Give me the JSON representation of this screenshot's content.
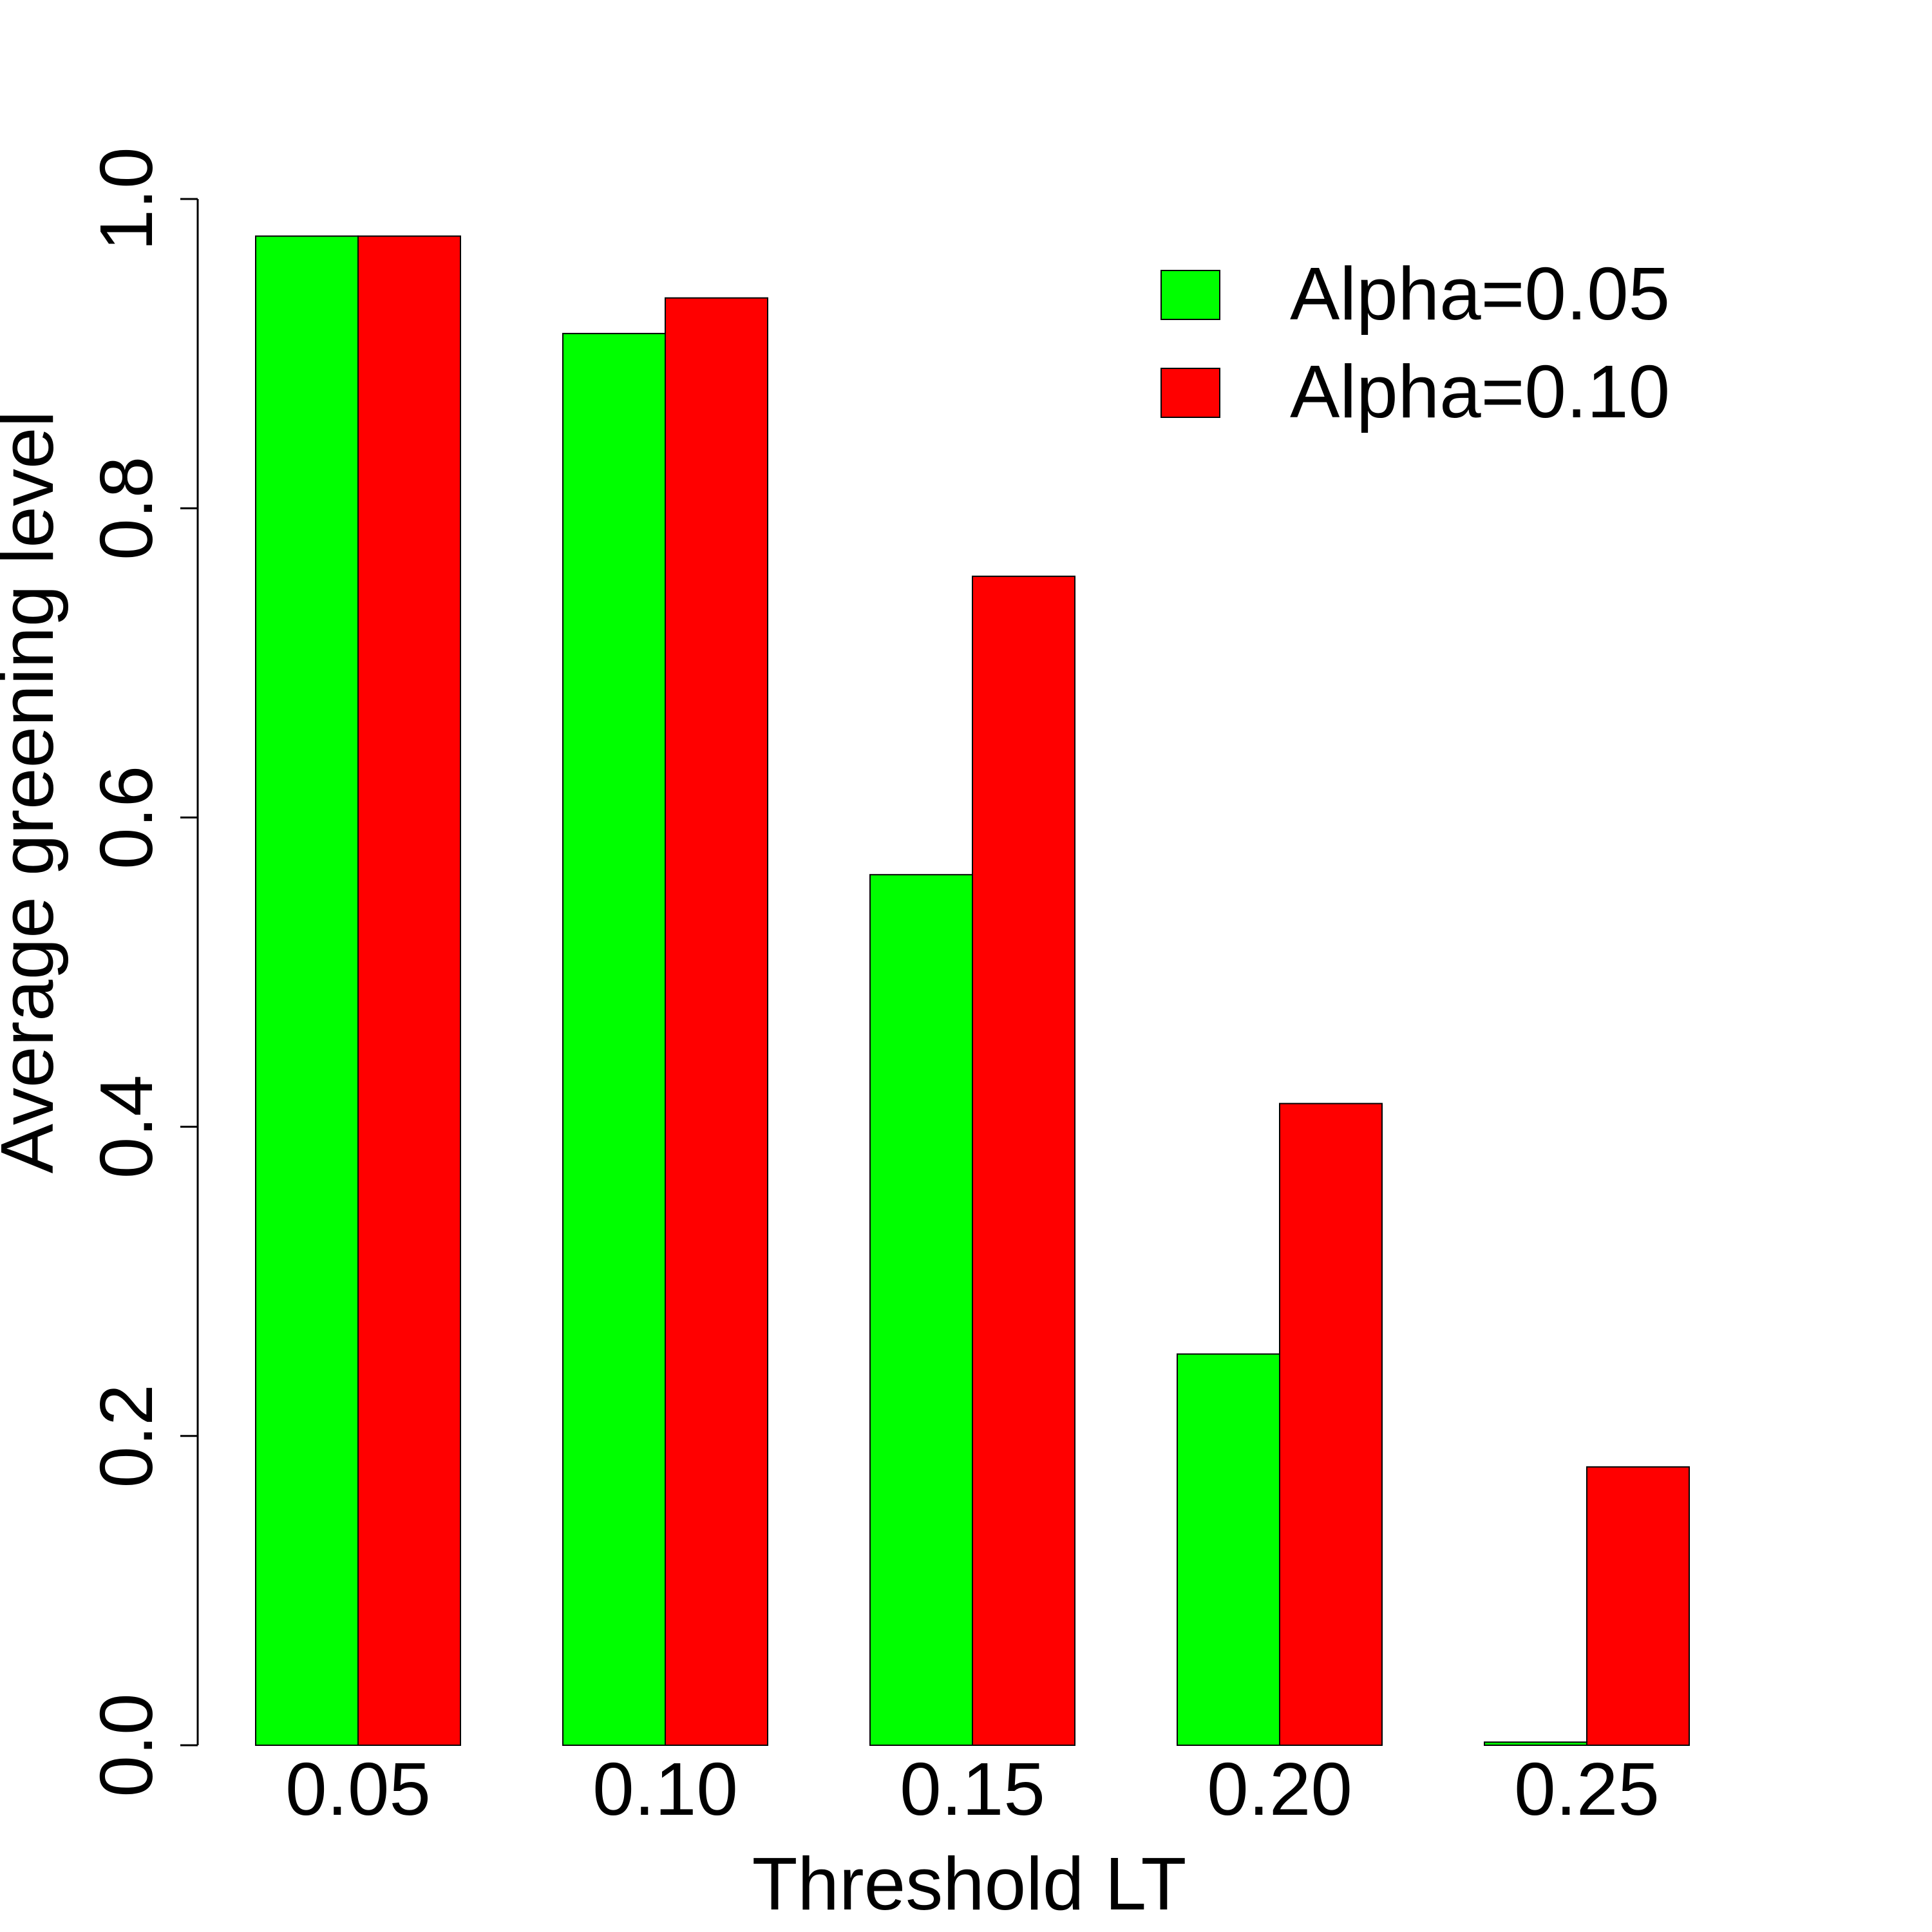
{
  "chart_data": {
    "type": "bar",
    "title": "",
    "xlabel": "Threshold LT",
    "ylabel": "Average greening level",
    "categories": [
      "0.05",
      "0.10",
      "0.15",
      "0.20",
      "0.25"
    ],
    "series": [
      {
        "name": "Alpha=0.05",
        "color": "#00ff00",
        "values": [
          0.976,
          0.913,
          0.563,
          0.253,
          0.002
        ]
      },
      {
        "name": "Alpha=0.10",
        "color": "#ff0000",
        "values": [
          0.976,
          0.936,
          0.756,
          0.415,
          0.18
        ]
      }
    ],
    "ylim": [
      0,
      1
    ],
    "yticks": [
      "0.0",
      "0.2",
      "0.4",
      "0.6",
      "0.8",
      "1.0"
    ],
    "grid": false,
    "legend_position": "top-right"
  }
}
